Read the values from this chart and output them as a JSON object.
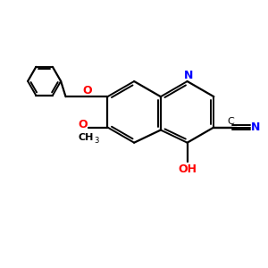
{
  "background_color": "#ffffff",
  "bond_color": "#000000",
  "N_color": "#0000ff",
  "O_color": "#ff0000",
  "figsize": [
    3.0,
    3.0
  ],
  "dpi": 100,
  "xlim": [
    0,
    10
  ],
  "ylim": [
    0,
    10
  ]
}
